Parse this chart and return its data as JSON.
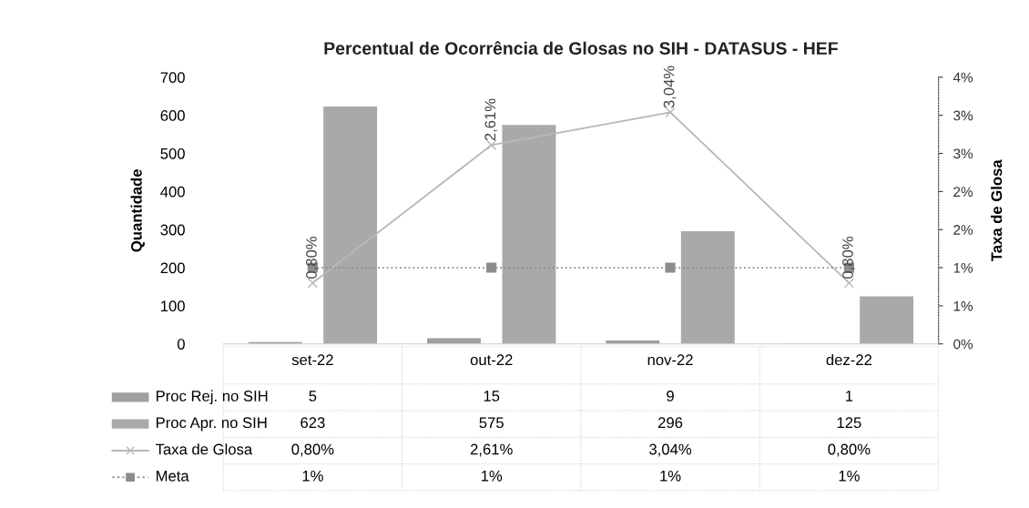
{
  "chart_data": {
    "type": "bar",
    "title": "Percentual de Ocorrência de Glosas no SIH - DATASUS - HEF",
    "ylabel": "Quantidade",
    "y2label": "Taxa de Glosa",
    "categories": [
      "set-22",
      "out-22",
      "nov-22",
      "dez-22"
    ],
    "series": [
      {
        "name": "Proc Rej. no SIH",
        "color": "#9e9e9e",
        "values": [
          5,
          15,
          9,
          1
        ],
        "value_labels": [
          "5",
          "15",
          "9",
          "1"
        ]
      },
      {
        "name": "Proc Apr. no SIH",
        "color": "#a9a9a9",
        "values": [
          623,
          575,
          296,
          125
        ],
        "value_labels": [
          "623",
          "575",
          "296",
          "125"
        ]
      },
      {
        "name": "Taxa de Glosa",
        "type": "line",
        "axis": "y2",
        "color": "#b8b8b8",
        "marker": "cross",
        "line_style": "solid",
        "values": [
          0.8,
          2.61,
          3.04,
          0.8
        ],
        "value_labels": [
          "0,80%",
          "2,61%",
          "3,04%",
          "0,80%"
        ]
      },
      {
        "name": "Meta",
        "type": "line",
        "axis": "y2",
        "color": "#8c8c8c",
        "marker": "square",
        "line_style": "dotted",
        "values": [
          1,
          1,
          1,
          1
        ],
        "value_labels": [
          "1%",
          "1%",
          "1%",
          "1%"
        ]
      }
    ],
    "ylim": [
      0,
      700
    ],
    "yticks": [
      0,
      100,
      200,
      300,
      400,
      500,
      600,
      700
    ],
    "y2lim": [
      0,
      3.5
    ],
    "y2ticks": [
      {
        "value": 0,
        "label": "0%"
      },
      {
        "value": 0.5,
        "label": "1%"
      },
      {
        "value": 1,
        "label": "1%"
      },
      {
        "value": 1.5,
        "label": "2%"
      },
      {
        "value": 2,
        "label": "2%"
      },
      {
        "value": 2.5,
        "label": "3%"
      },
      {
        "value": 3,
        "label": "3%"
      },
      {
        "value": 3.5,
        "label": "4%"
      }
    ],
    "legend": "bottom",
    "grid": false
  }
}
